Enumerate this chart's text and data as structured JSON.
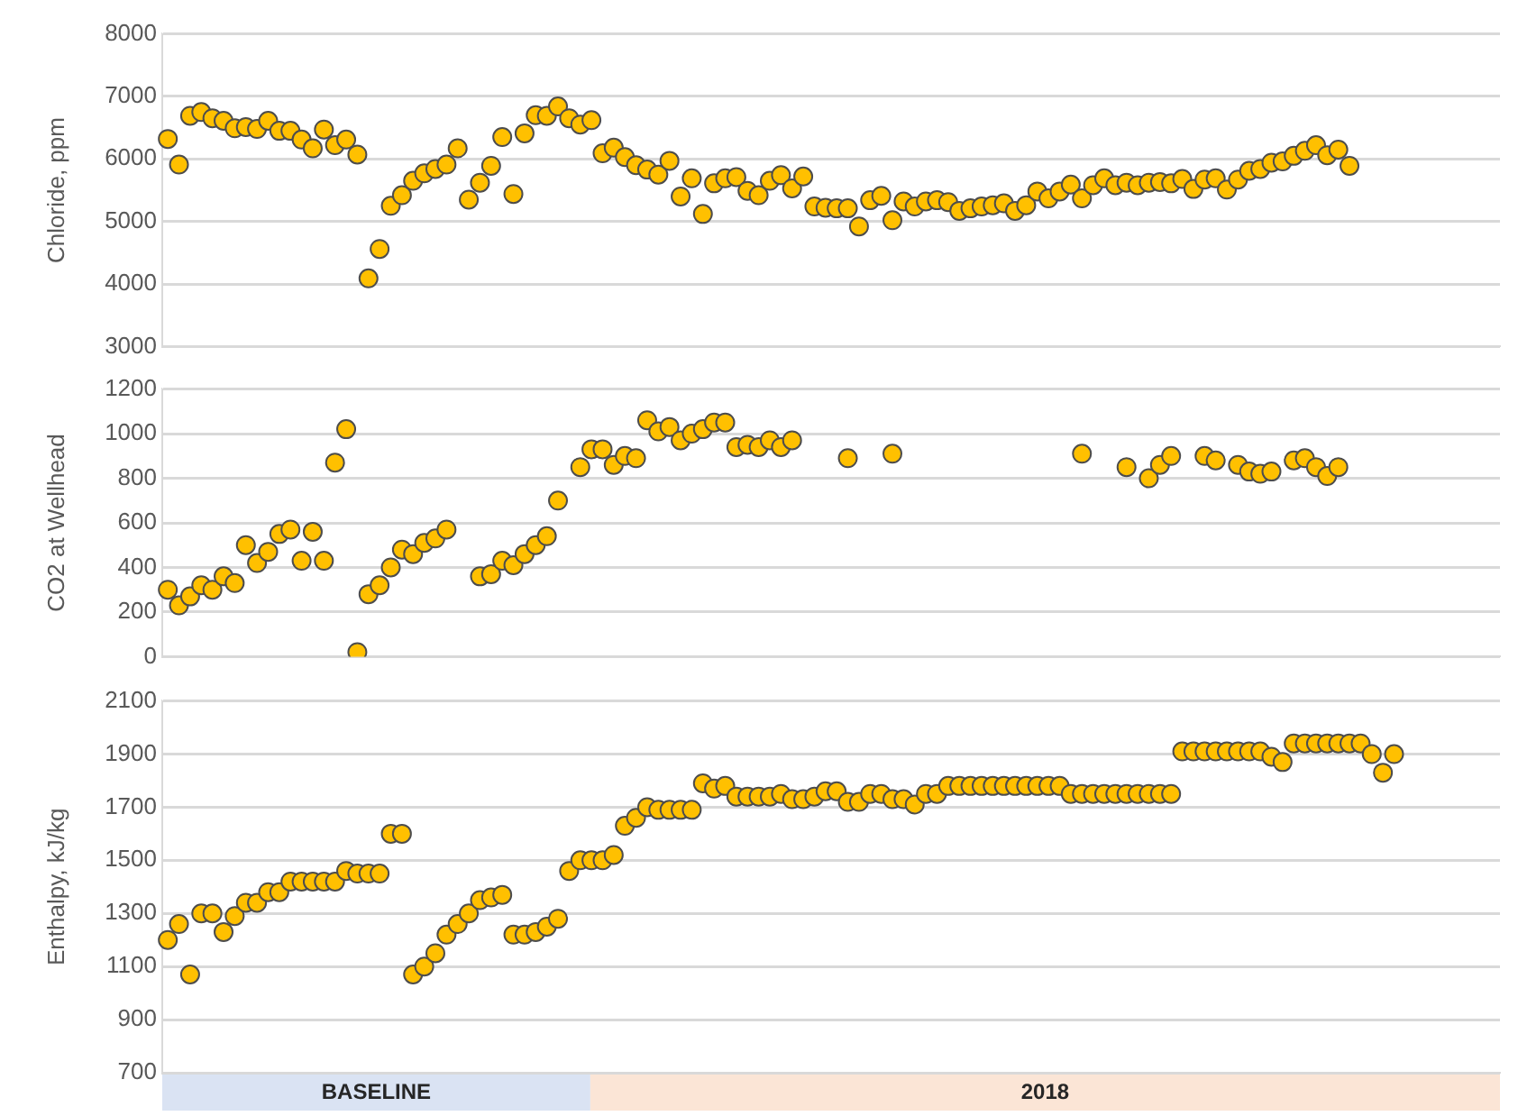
{
  "chart_data": [
    {
      "type": "scatter",
      "ylabel": "Chloride, ppm",
      "marker": "circle",
      "grid": "y",
      "legend": false,
      "tick_labels": "y",
      "categories": [
        null,
        null,
        null,
        null,
        null,
        null,
        null,
        null,
        null,
        null,
        null,
        null,
        null,
        null,
        null,
        null,
        null,
        null,
        null,
        null,
        null,
        null,
        null,
        null,
        null,
        null,
        null,
        null,
        null,
        null,
        null,
        null,
        null,
        null,
        null,
        null,
        null,
        null,
        null,
        null,
        null,
        null,
        null,
        null,
        null,
        null,
        null,
        null,
        null,
        null,
        null,
        null,
        null,
        null,
        null,
        null,
        null,
        null,
        null,
        null,
        null,
        null,
        null,
        null,
        null,
        null,
        null,
        null,
        null,
        null,
        null,
        null,
        null,
        null,
        null,
        null,
        null,
        null,
        null,
        null,
        null,
        null,
        null,
        null,
        null,
        null,
        null,
        null,
        null,
        null,
        null,
        null,
        null,
        null,
        null,
        null,
        null,
        null,
        null,
        null,
        null,
        null,
        null,
        null,
        null,
        null,
        null,
        null,
        null,
        null,
        null,
        null,
        null,
        null,
        null,
        null,
        null,
        null,
        null,
        null
      ],
      "ylim": [
        3000,
        8000
      ],
      "yticks": [
        3000,
        4000,
        5000,
        6000,
        7000,
        8000
      ],
      "series": [
        {
          "color": "#ffc000",
          "values": [
            6320,
            5910,
            6690,
            6750,
            6650,
            6610,
            6490,
            6510,
            6480,
            6610,
            6450,
            6450,
            6310,
            6170,
            6470,
            6220,
            6310,
            6070,
            4090,
            4560,
            5250,
            5420,
            5650,
            5770,
            5840,
            5910,
            6170,
            5350,
            5620,
            5890,
            6350,
            5440,
            6410,
            6700,
            6690,
            6840,
            6650,
            6550,
            6620,
            6090,
            6180,
            6030,
            5900,
            5830,
            5750,
            5970,
            5400,
            5690,
            5120,
            5610,
            5690,
            5710,
            5490,
            5420,
            5650,
            5740,
            5530,
            5720,
            5240,
            5220,
            5210,
            5210,
            4920,
            5340,
            5410,
            5020,
            5320,
            5240,
            5320,
            5340,
            5310,
            5170,
            5210,
            5240,
            5260,
            5290,
            5170,
            5260,
            5480,
            5370,
            5480,
            5590,
            5370,
            5580,
            5690,
            5580,
            5620,
            5580,
            5620,
            5630,
            5610,
            5680,
            5520,
            5670,
            5690,
            5510,
            5670,
            5810,
            5840,
            5940,
            5960,
            6050,
            6130,
            6220,
            6060,
            6150,
            5890,
            null,
            null,
            null,
            null,
            null,
            null,
            null,
            null,
            null,
            null,
            null,
            null,
            null
          ]
        }
      ]
    },
    {
      "type": "scatter",
      "ylabel": "CO2 at Wellhead",
      "marker": "circle",
      "grid": "y",
      "legend": false,
      "tick_labels": "y",
      "categories": [
        null,
        null,
        null,
        null,
        null,
        null,
        null,
        null,
        null,
        null,
        null,
        null,
        null,
        null,
        null,
        null,
        null,
        null,
        null,
        null,
        null,
        null,
        null,
        null,
        null,
        null,
        null,
        null,
        null,
        null,
        null,
        null,
        null,
        null,
        null,
        null,
        null,
        null,
        null,
        null,
        null,
        null,
        null,
        null,
        null,
        null,
        null,
        null,
        null,
        null,
        null,
        null,
        null,
        null,
        null,
        null,
        null,
        null,
        null,
        null,
        null,
        null,
        null,
        null,
        null,
        null,
        null,
        null,
        null,
        null,
        null,
        null,
        null,
        null,
        null,
        null,
        null,
        null,
        null,
        null,
        null,
        null,
        null,
        null,
        null,
        null,
        null,
        null,
        null,
        null,
        null,
        null,
        null,
        null,
        null,
        null,
        null,
        null,
        null,
        null,
        null,
        null,
        null,
        null,
        null,
        null,
        null,
        null,
        null,
        null,
        null,
        null,
        null,
        null,
        null,
        null,
        null,
        null,
        null,
        null
      ],
      "ylim": [
        0,
        1200
      ],
      "yticks": [
        0,
        200,
        400,
        600,
        800,
        1000,
        1200
      ],
      "series": [
        {
          "color": "#ffc000",
          "values": [
            300,
            230,
            270,
            320,
            300,
            360,
            330,
            500,
            420,
            470,
            550,
            570,
            430,
            560,
            430,
            870,
            1020,
            20,
            280,
            320,
            400,
            480,
            460,
            510,
            530,
            570,
            null,
            null,
            360,
            370,
            430,
            410,
            460,
            500,
            540,
            700,
            null,
            850,
            930,
            930,
            860,
            900,
            890,
            1060,
            1010,
            1030,
            970,
            1000,
            1020,
            1050,
            1050,
            940,
            950,
            940,
            970,
            940,
            970,
            null,
            null,
            null,
            null,
            890,
            null,
            null,
            null,
            910,
            null,
            null,
            null,
            null,
            null,
            null,
            null,
            null,
            null,
            null,
            null,
            null,
            null,
            null,
            null,
            null,
            910,
            null,
            null,
            null,
            850,
            null,
            800,
            860,
            900,
            null,
            null,
            900,
            880,
            null,
            860,
            830,
            820,
            830,
            null,
            880,
            890,
            850,
            810,
            850,
            null,
            null,
            null,
            null,
            null,
            null,
            null,
            null,
            null,
            null,
            null,
            null,
            null,
            null
          ]
        }
      ]
    },
    {
      "type": "scatter",
      "ylabel": "Enthalpy, kJ/kg",
      "marker": "circle",
      "grid": "y",
      "legend": false,
      "tick_labels": "y",
      "categories": [
        null,
        null,
        null,
        null,
        null,
        null,
        null,
        null,
        null,
        null,
        null,
        null,
        null,
        null,
        null,
        null,
        null,
        null,
        null,
        null,
        null,
        null,
        null,
        null,
        null,
        null,
        null,
        null,
        null,
        null,
        null,
        null,
        null,
        null,
        null,
        null,
        null,
        null,
        null,
        null,
        null,
        null,
        null,
        null,
        null,
        null,
        null,
        null,
        null,
        null,
        null,
        null,
        null,
        null,
        null,
        null,
        null,
        null,
        null,
        null,
        null,
        null,
        null,
        null,
        null,
        null,
        null,
        null,
        null,
        null,
        null,
        null,
        null,
        null,
        null,
        null,
        null,
        null,
        null,
        null,
        null,
        null,
        null,
        null,
        null,
        null,
        null,
        null,
        null,
        null,
        null,
        null,
        null,
        null,
        null,
        null,
        null,
        null,
        null,
        null,
        null,
        null,
        null,
        null,
        null,
        null,
        null,
        null,
        null,
        null,
        null,
        null,
        null,
        null,
        null,
        null,
        null,
        null,
        null,
        null
      ],
      "ylim": [
        700,
        2100
      ],
      "yticks": [
        700,
        900,
        1100,
        1300,
        1500,
        1700,
        1900,
        2100
      ],
      "annotations": [
        "BASELINE",
        "2018"
      ],
      "series": [
        {
          "color": "#ffc000",
          "values": [
            1200,
            1260,
            1070,
            1300,
            1300,
            1230,
            1290,
            1340,
            1340,
            1380,
            1380,
            1420,
            1420,
            1420,
            1420,
            1420,
            1460,
            1450,
            1450,
            1450,
            1600,
            1600,
            1070,
            1100,
            1150,
            1220,
            1260,
            1300,
            1350,
            1360,
            1370,
            1220,
            1220,
            1230,
            1250,
            1280,
            1460,
            1500,
            1500,
            1500,
            1520,
            1630,
            1660,
            1700,
            1690,
            1690,
            1690,
            1690,
            1790,
            1770,
            1780,
            1740,
            1740,
            1740,
            1740,
            1750,
            1730,
            1730,
            1740,
            1760,
            1760,
            1720,
            1720,
            1750,
            1750,
            1730,
            1730,
            1710,
            1750,
            1750,
            1780,
            1780,
            1780,
            1780,
            1780,
            1780,
            1780,
            1780,
            1780,
            1780,
            1780,
            1750,
            1750,
            1750,
            1750,
            1750,
            1750,
            1750,
            1750,
            1750,
            1750,
            1910,
            1910,
            1910,
            1910,
            1910,
            1910,
            1910,
            1910,
            1890,
            1870,
            1940,
            1940,
            1940,
            1940,
            1940,
            1940,
            1940,
            1900,
            1830,
            1900,
            null,
            null,
            null,
            null,
            null,
            null,
            null,
            null,
            null
          ]
        }
      ]
    }
  ]
}
